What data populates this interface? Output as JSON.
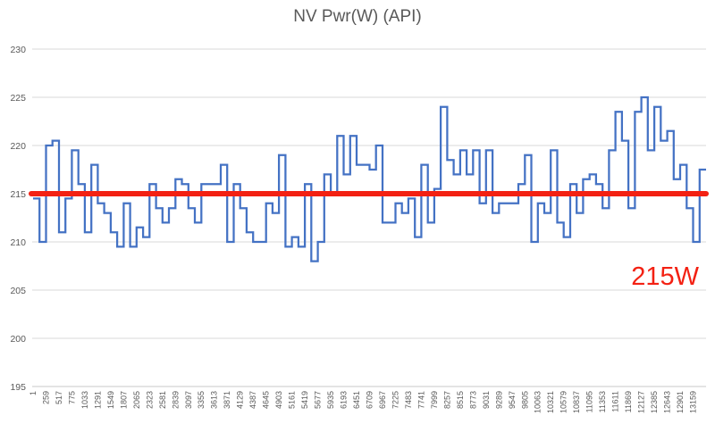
{
  "window": {
    "background": "#ffffff"
  },
  "chart_data": {
    "type": "line",
    "title": "NV Pwr(W) (API)",
    "subtitle": "",
    "xlabel": "",
    "ylabel": "",
    "ylim": [
      195,
      230
    ],
    "y_ticks": [
      230,
      225,
      220,
      215,
      210,
      205,
      200,
      195
    ],
    "grid": true,
    "legend_position": "none",
    "x_tick_labels": [
      "1",
      "259",
      "517",
      "775",
      "1033",
      "1291",
      "1549",
      "1807",
      "2065",
      "2323",
      "2581",
      "2839",
      "3097",
      "3355",
      "3613",
      "3871",
      "4129",
      "4387",
      "4645",
      "4903",
      "5161",
      "5419",
      "5677",
      "5935",
      "6193",
      "6451",
      "6709",
      "6967",
      "7225",
      "7483",
      "7741",
      "7999",
      "8257",
      "8515",
      "8773",
      "9031",
      "9289",
      "9547",
      "9805",
      "10063",
      "10321",
      "10579",
      "10837",
      "11095",
      "11353",
      "11611",
      "11869",
      "12127",
      "12385",
      "12643",
      "12901",
      "13159"
    ],
    "series": [
      {
        "name": "NV Pwr(W) (API)",
        "color": "#4472c4",
        "values": [
          214.5,
          210,
          220,
          220.5,
          211,
          214.5,
          219.5,
          216,
          211,
          218,
          214,
          213,
          211,
          209.5,
          214,
          209.5,
          211.5,
          210.5,
          216,
          213.5,
          212,
          213.5,
          216.5,
          216,
          213.5,
          212,
          216,
          216,
          216,
          218,
          210,
          216,
          213.5,
          211,
          210,
          210,
          214,
          213,
          219,
          209.5,
          210.5,
          209.5,
          216,
          208,
          210,
          217,
          215,
          221,
          217,
          221,
          218,
          218,
          217.5,
          220,
          212,
          212,
          214,
          213,
          214.5,
          210.5,
          218,
          212,
          215.5,
          224,
          218.5,
          217,
          219.5,
          217,
          219.5,
          214,
          219.5,
          213,
          214,
          214,
          214,
          216,
          219,
          210,
          214,
          213,
          219.5,
          212,
          210.5,
          216,
          213,
          216.5,
          217,
          216,
          213.5,
          219.5,
          223.5,
          220.5,
          213.5,
          223.5,
          225,
          219.5,
          224,
          220.5,
          221.5,
          216.5,
          218,
          213.5,
          210,
          217.5
        ]
      }
    ],
    "reference_line": {
      "value": 215,
      "color": "#f32113"
    },
    "annotation": {
      "text": "215W",
      "color": "#f32113"
    },
    "colors": {
      "series_blue": "#4472c4",
      "reference_red": "#f32113",
      "grid_gray": "#d9d9d9",
      "axis_text_gray": "#595959",
      "title_gray": "#595959"
    }
  }
}
